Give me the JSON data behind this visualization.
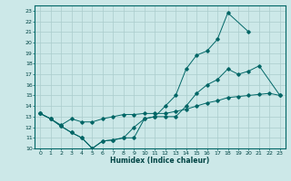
{
  "xlabel": "Humidex (Indice chaleur)",
  "bg_color": "#cce8e8",
  "grid_color": "#aacccc",
  "line_color": "#006666",
  "xlim": [
    -0.5,
    23.5
  ],
  "ylim": [
    10,
    23.5
  ],
  "yticks": [
    10,
    11,
    12,
    13,
    14,
    15,
    16,
    17,
    18,
    19,
    20,
    21,
    22,
    23
  ],
  "xticks": [
    0,
    1,
    2,
    3,
    4,
    5,
    6,
    7,
    8,
    9,
    10,
    11,
    12,
    13,
    14,
    15,
    16,
    17,
    18,
    19,
    20,
    21,
    22,
    23
  ],
  "line1_x": [
    0,
    1,
    2,
    3,
    4,
    5,
    6,
    7,
    8,
    9,
    10,
    11,
    12,
    13,
    14,
    15,
    16,
    17,
    18,
    20
  ],
  "line1_y": [
    13.3,
    12.8,
    12.1,
    11.5,
    11.0,
    10.0,
    10.7,
    10.8,
    11.0,
    11.0,
    12.8,
    13.0,
    14.0,
    15.0,
    17.5,
    18.8,
    19.2,
    20.3,
    22.8,
    21.0
  ],
  "line2_x": [
    0,
    1,
    2,
    3,
    4,
    5,
    6,
    7,
    8,
    9,
    10,
    11,
    12,
    13,
    14,
    15,
    16,
    17,
    18,
    19,
    20,
    21,
    23
  ],
  "line2_y": [
    13.3,
    12.8,
    12.1,
    11.5,
    11.0,
    10.0,
    10.7,
    10.8,
    11.0,
    12.0,
    12.8,
    13.0,
    13.0,
    13.0,
    14.0,
    15.2,
    16.0,
    16.5,
    17.5,
    17.0,
    17.3,
    17.8,
    15.0
  ],
  "line3_x": [
    0,
    1,
    2,
    3,
    4,
    5,
    6,
    7,
    8,
    9,
    10,
    11,
    12,
    13,
    14,
    15,
    16,
    17,
    18,
    19,
    20,
    21,
    22,
    23
  ],
  "line3_y": [
    13.3,
    12.8,
    12.2,
    12.8,
    12.5,
    12.5,
    12.8,
    13.0,
    13.2,
    13.2,
    13.3,
    13.3,
    13.3,
    13.5,
    13.7,
    14.0,
    14.3,
    14.5,
    14.8,
    14.9,
    15.0,
    15.1,
    15.2,
    15.0
  ]
}
